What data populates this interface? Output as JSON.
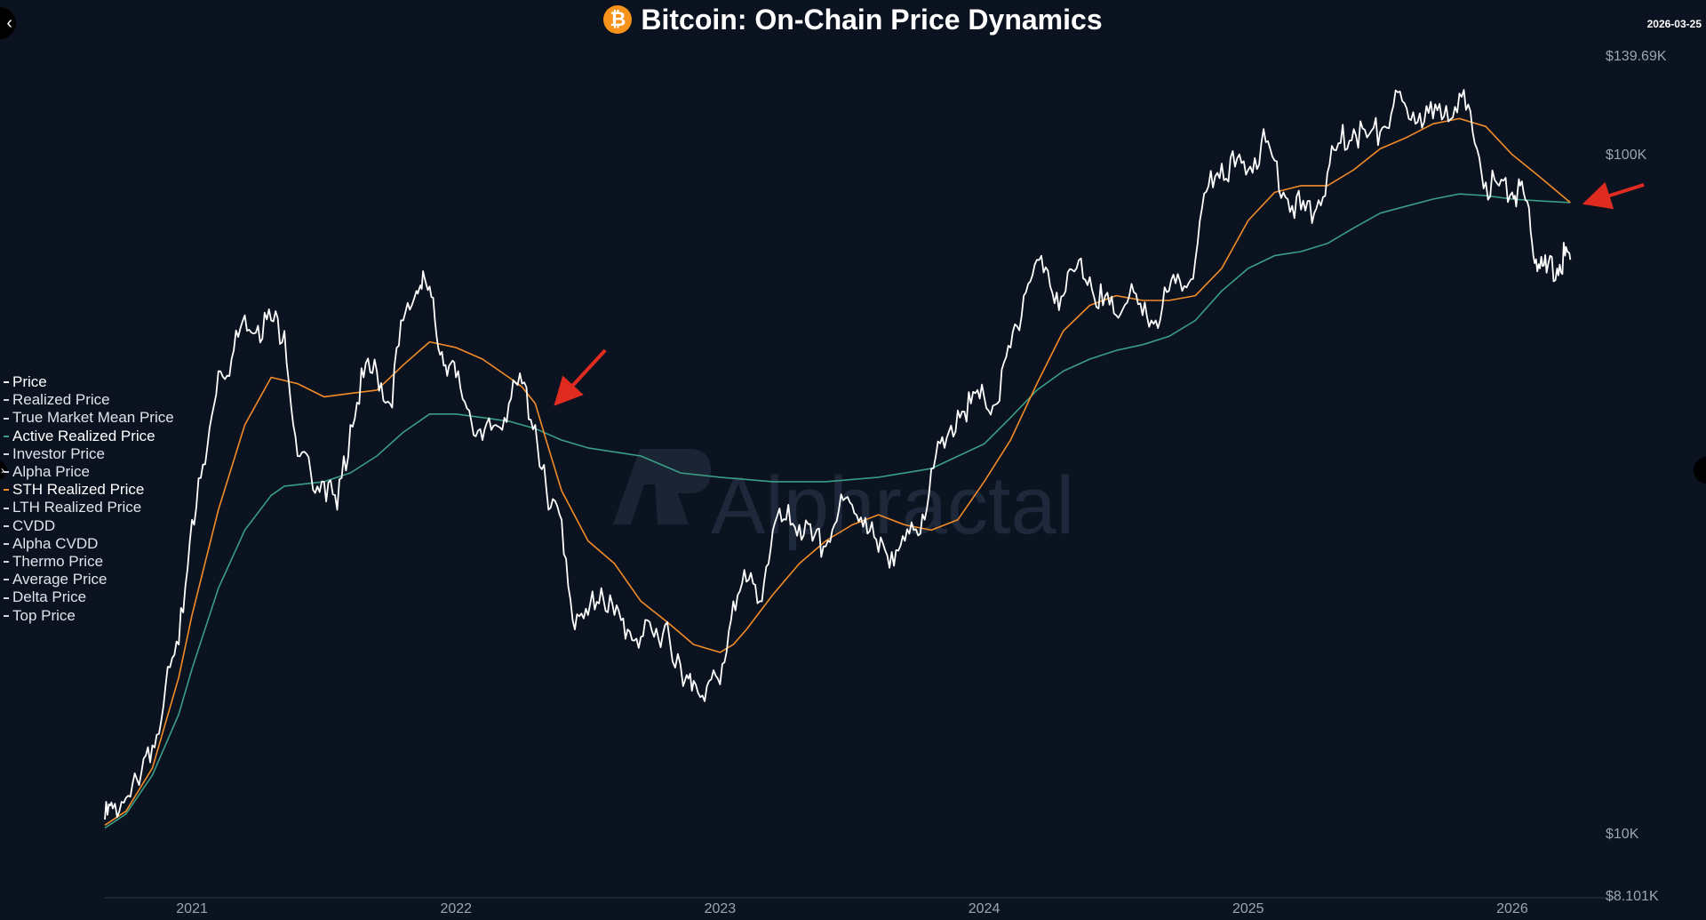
{
  "chart_data": {
    "type": "line",
    "title": "Bitcoin: On-Chain Price Dynamics",
    "date_badge": "2026-03-25",
    "watermark": "Alphractal",
    "y_scale": "log",
    "ylim": [
      8101,
      139690
    ],
    "y_ticks": [
      {
        "value": 139690,
        "label": "$139.69K"
      },
      {
        "value": 100000,
        "label": "$100K"
      },
      {
        "value": 10000,
        "label": "$10K"
      },
      {
        "value": 8101,
        "label": "$8.101K"
      }
    ],
    "x_ticks": [
      {
        "value": 2021.0,
        "label": "2021"
      },
      {
        "value": 2022.0,
        "label": "2022"
      },
      {
        "value": 2023.0,
        "label": "2023"
      },
      {
        "value": 2024.0,
        "label": "2024"
      },
      {
        "value": 2025.0,
        "label": "2025"
      },
      {
        "value": 2026.0,
        "label": "2026"
      }
    ],
    "xlim": [
      2020.67,
      2026.33
    ],
    "legend": [
      {
        "label": "Price",
        "active": true,
        "color": "#ffffff"
      },
      {
        "label": "Realized Price",
        "active": false,
        "color": "#cfd6df"
      },
      {
        "label": "True Market Mean Price",
        "active": false,
        "color": "#cfd6df"
      },
      {
        "label": "Active Realized Price",
        "active": true,
        "color": "#3a9e85"
      },
      {
        "label": "Investor Price",
        "active": false,
        "color": "#cfd6df"
      },
      {
        "label": "Alpha Price",
        "active": false,
        "color": "#cfd6df"
      },
      {
        "label": "STH Realized Price",
        "active": true,
        "color": "#f28c28"
      },
      {
        "label": "LTH Realized Price",
        "active": false,
        "color": "#cfd6df"
      },
      {
        "label": "CVDD",
        "active": false,
        "color": "#cfd6df"
      },
      {
        "label": "Alpha CVDD",
        "active": false,
        "color": "#cfd6df"
      },
      {
        "label": "Thermo Price",
        "active": false,
        "color": "#cfd6df"
      },
      {
        "label": "Average Price",
        "active": false,
        "color": "#cfd6df"
      },
      {
        "label": "Delta Price",
        "active": false,
        "color": "#cfd6df"
      },
      {
        "label": "Top Price",
        "active": false,
        "color": "#cfd6df"
      }
    ],
    "series": [
      {
        "name": "Price",
        "color": "#ffffff",
        "points": [
          [
            2020.67,
            10500
          ],
          [
            2020.7,
            10900
          ],
          [
            2020.75,
            11300
          ],
          [
            2020.8,
            11800
          ],
          [
            2020.85,
            13500
          ],
          [
            2020.9,
            16500
          ],
          [
            2020.95,
            19000
          ],
          [
            2021.0,
            29000
          ],
          [
            2021.05,
            35000
          ],
          [
            2021.1,
            48000
          ],
          [
            2021.15,
            50000
          ],
          [
            2021.2,
            58000
          ],
          [
            2021.25,
            56000
          ],
          [
            2021.3,
            57000
          ],
          [
            2021.35,
            55000
          ],
          [
            2021.4,
            36000
          ],
          [
            2021.45,
            34000
          ],
          [
            2021.5,
            33000
          ],
          [
            2021.55,
            30000
          ],
          [
            2021.6,
            40000
          ],
          [
            2021.65,
            47000
          ],
          [
            2021.7,
            48000
          ],
          [
            2021.75,
            43000
          ],
          [
            2021.8,
            57000
          ],
          [
            2021.85,
            63000
          ],
          [
            2021.88,
            66000
          ],
          [
            2021.92,
            57000
          ],
          [
            2021.96,
            49000
          ],
          [
            2022.0,
            47000
          ],
          [
            2022.05,
            42000
          ],
          [
            2022.1,
            38000
          ],
          [
            2022.15,
            40000
          ],
          [
            2022.2,
            43000
          ],
          [
            2022.25,
            46000
          ],
          [
            2022.3,
            40000
          ],
          [
            2022.35,
            30000
          ],
          [
            2022.4,
            29000
          ],
          [
            2022.45,
            20000
          ],
          [
            2022.5,
            21000
          ],
          [
            2022.55,
            23000
          ],
          [
            2022.6,
            21000
          ],
          [
            2022.65,
            20000
          ],
          [
            2022.7,
            19500
          ],
          [
            2022.75,
            19500
          ],
          [
            2022.8,
            20500
          ],
          [
            2022.86,
            16500
          ],
          [
            2022.9,
            16800
          ],
          [
            2022.95,
            16500
          ],
          [
            2023.0,
            16600
          ],
          [
            2023.05,
            22000
          ],
          [
            2023.1,
            23500
          ],
          [
            2023.15,
            22000
          ],
          [
            2023.2,
            28000
          ],
          [
            2023.25,
            29000
          ],
          [
            2023.3,
            28500
          ],
          [
            2023.35,
            27000
          ],
          [
            2023.4,
            26500
          ],
          [
            2023.45,
            30000
          ],
          [
            2023.5,
            30500
          ],
          [
            2023.55,
            29200
          ],
          [
            2023.6,
            26000
          ],
          [
            2023.65,
            26000
          ],
          [
            2023.7,
            27000
          ],
          [
            2023.75,
            27500
          ],
          [
            2023.8,
            34500
          ],
          [
            2023.85,
            37000
          ],
          [
            2023.9,
            42000
          ],
          [
            2023.95,
            43000
          ],
          [
            2024.0,
            44000
          ],
          [
            2024.05,
            43000
          ],
          [
            2024.1,
            52000
          ],
          [
            2024.15,
            62000
          ],
          [
            2024.2,
            70000
          ],
          [
            2024.25,
            64000
          ],
          [
            2024.3,
            62000
          ],
          [
            2024.35,
            68000
          ],
          [
            2024.4,
            66000
          ],
          [
            2024.45,
            60000
          ],
          [
            2024.5,
            58000
          ],
          [
            2024.55,
            62000
          ],
          [
            2024.6,
            58000
          ],
          [
            2024.65,
            57000
          ],
          [
            2024.7,
            63000
          ],
          [
            2024.75,
            63000
          ],
          [
            2024.8,
            70000
          ],
          [
            2024.85,
            90000
          ],
          [
            2024.9,
            97000
          ],
          [
            2024.95,
            96000
          ],
          [
            2025.0,
            95000
          ],
          [
            2025.05,
            104000
          ],
          [
            2025.1,
            98000
          ],
          [
            2025.15,
            86000
          ],
          [
            2025.2,
            83000
          ],
          [
            2025.25,
            82000
          ],
          [
            2025.3,
            94000
          ],
          [
            2025.35,
            104000
          ],
          [
            2025.4,
            109000
          ],
          [
            2025.45,
            106000
          ],
          [
            2025.5,
            108000
          ],
          [
            2025.55,
            118000
          ],
          [
            2025.6,
            117000
          ],
          [
            2025.65,
            115000
          ],
          [
            2025.7,
            113000
          ],
          [
            2025.75,
            118000
          ],
          [
            2025.8,
            123000
          ],
          [
            2025.85,
            108000
          ],
          [
            2025.9,
            91000
          ],
          [
            2025.95,
            90000
          ],
          [
            2026.0,
            88000
          ],
          [
            2026.03,
            90000
          ],
          [
            2026.07,
            77000
          ],
          [
            2026.1,
            69000
          ],
          [
            2026.13,
            67000
          ],
          [
            2026.17,
            68000
          ],
          [
            2026.2,
            71000
          ],
          [
            2026.22,
            70000
          ]
        ]
      },
      {
        "name": "Active Realized Price",
        "color": "#3a9e85",
        "points": [
          [
            2020.67,
            10200
          ],
          [
            2020.75,
            10700
          ],
          [
            2020.85,
            12200
          ],
          [
            2020.95,
            15000
          ],
          [
            2021.0,
            17500
          ],
          [
            2021.1,
            23000
          ],
          [
            2021.2,
            28000
          ],
          [
            2021.3,
            31500
          ],
          [
            2021.35,
            32500
          ],
          [
            2021.5,
            33000
          ],
          [
            2021.6,
            34000
          ],
          [
            2021.7,
            36000
          ],
          [
            2021.8,
            39000
          ],
          [
            2021.9,
            41500
          ],
          [
            2022.0,
            41500
          ],
          [
            2022.1,
            41000
          ],
          [
            2022.2,
            40500
          ],
          [
            2022.3,
            39500
          ],
          [
            2022.4,
            38000
          ],
          [
            2022.5,
            37000
          ],
          [
            2022.6,
            36500
          ],
          [
            2022.7,
            36000
          ],
          [
            2022.85,
            34000
          ],
          [
            2023.0,
            33500
          ],
          [
            2023.2,
            33000
          ],
          [
            2023.4,
            33000
          ],
          [
            2023.6,
            33500
          ],
          [
            2023.8,
            34500
          ],
          [
            2024.0,
            37500
          ],
          [
            2024.1,
            41000
          ],
          [
            2024.2,
            45000
          ],
          [
            2024.3,
            48000
          ],
          [
            2024.4,
            50000
          ],
          [
            2024.5,
            51500
          ],
          [
            2024.6,
            52500
          ],
          [
            2024.7,
            54000
          ],
          [
            2024.8,
            57000
          ],
          [
            2024.9,
            63000
          ],
          [
            2025.0,
            68000
          ],
          [
            2025.1,
            71000
          ],
          [
            2025.2,
            72000
          ],
          [
            2025.3,
            74000
          ],
          [
            2025.4,
            78000
          ],
          [
            2025.5,
            82000
          ],
          [
            2025.6,
            84000
          ],
          [
            2025.7,
            86000
          ],
          [
            2025.8,
            87500
          ],
          [
            2025.9,
            87000
          ],
          [
            2026.0,
            86000
          ],
          [
            2026.1,
            85500
          ],
          [
            2026.22,
            85000
          ]
        ]
      },
      {
        "name": "STH Realized Price",
        "color": "#f28c28",
        "points": [
          [
            2020.67,
            10300
          ],
          [
            2020.75,
            10800
          ],
          [
            2020.85,
            12500
          ],
          [
            2020.95,
            17000
          ],
          [
            2021.0,
            21000
          ],
          [
            2021.1,
            30000
          ],
          [
            2021.2,
            40000
          ],
          [
            2021.3,
            47000
          ],
          [
            2021.4,
            46000
          ],
          [
            2021.5,
            44000
          ],
          [
            2021.6,
            44500
          ],
          [
            2021.7,
            45000
          ],
          [
            2021.8,
            49000
          ],
          [
            2021.9,
            53000
          ],
          [
            2022.0,
            52000
          ],
          [
            2022.1,
            50000
          ],
          [
            2022.2,
            47000
          ],
          [
            2022.25,
            45500
          ],
          [
            2022.3,
            43000
          ],
          [
            2022.35,
            37000
          ],
          [
            2022.4,
            32000
          ],
          [
            2022.5,
            27000
          ],
          [
            2022.6,
            25000
          ],
          [
            2022.7,
            22000
          ],
          [
            2022.8,
            20500
          ],
          [
            2022.9,
            19000
          ],
          [
            2023.0,
            18500
          ],
          [
            2023.05,
            19000
          ],
          [
            2023.1,
            20000
          ],
          [
            2023.2,
            22500
          ],
          [
            2023.3,
            25000
          ],
          [
            2023.4,
            27000
          ],
          [
            2023.5,
            28500
          ],
          [
            2023.6,
            29500
          ],
          [
            2023.7,
            28500
          ],
          [
            2023.8,
            28000
          ],
          [
            2023.9,
            29000
          ],
          [
            2024.0,
            33000
          ],
          [
            2024.1,
            38000
          ],
          [
            2024.2,
            46000
          ],
          [
            2024.3,
            55000
          ],
          [
            2024.4,
            60000
          ],
          [
            2024.5,
            62000
          ],
          [
            2024.6,
            61000
          ],
          [
            2024.7,
            61000
          ],
          [
            2024.8,
            62000
          ],
          [
            2024.9,
            68000
          ],
          [
            2025.0,
            80000
          ],
          [
            2025.1,
            88000
          ],
          [
            2025.2,
            90000
          ],
          [
            2025.3,
            90000
          ],
          [
            2025.4,
            95000
          ],
          [
            2025.5,
            102000
          ],
          [
            2025.6,
            106000
          ],
          [
            2025.7,
            111000
          ],
          [
            2025.8,
            113000
          ],
          [
            2025.9,
            110000
          ],
          [
            2026.0,
            100000
          ],
          [
            2026.1,
            93000
          ],
          [
            2026.22,
            85000
          ]
        ]
      }
    ],
    "annotations": [
      {
        "type": "arrow",
        "color": "#e02b20",
        "target": [
          2022.38,
          43000
        ]
      },
      {
        "type": "arrow",
        "color": "#e02b20",
        "target": [
          2026.29,
          85000
        ]
      }
    ]
  }
}
